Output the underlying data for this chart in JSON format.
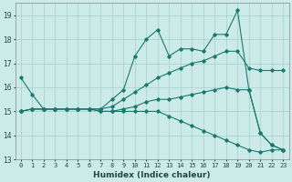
{
  "title": "",
  "xlabel": "Humidex (Indice chaleur)",
  "xlim": [
    -0.5,
    23.5
  ],
  "ylim": [
    13,
    19.5
  ],
  "yticks": [
    13,
    14,
    15,
    16,
    17,
    18,
    19
  ],
  "xticks": [
    0,
    1,
    2,
    3,
    4,
    5,
    6,
    7,
    8,
    9,
    10,
    11,
    12,
    13,
    14,
    15,
    16,
    17,
    18,
    19,
    20,
    21,
    22,
    23
  ],
  "bg_color": "#cceae8",
  "grid_color": "#aad4d0",
  "line_color": "#1a7a6e",
  "lines": [
    {
      "x": [
        0,
        1,
        2,
        3,
        4,
        5,
        6,
        7,
        8,
        9,
        10,
        11,
        12,
        13,
        14,
        15,
        16,
        17,
        18,
        19,
        20,
        21,
        22,
        23
      ],
      "y": [
        16.4,
        15.7,
        15.1,
        15.1,
        15.1,
        15.1,
        15.1,
        15.1,
        15.5,
        15.9,
        17.3,
        18.0,
        18.4,
        17.3,
        17.6,
        17.6,
        17.5,
        18.2,
        18.2,
        19.2,
        15.9,
        14.1,
        13.6,
        13.4
      ]
    },
    {
      "x": [
        0,
        1,
        2,
        3,
        4,
        5,
        6,
        7,
        8,
        9,
        10,
        11,
        12,
        13,
        14,
        15,
        16,
        17,
        18,
        19,
        20,
        21,
        22,
        23
      ],
      "y": [
        15.0,
        15.1,
        15.1,
        15.1,
        15.1,
        15.1,
        15.1,
        15.1,
        15.2,
        15.5,
        15.8,
        16.1,
        16.4,
        16.6,
        16.8,
        17.0,
        17.1,
        17.3,
        17.5,
        17.5,
        16.8,
        16.7,
        16.7,
        16.7
      ]
    },
    {
      "x": [
        0,
        1,
        2,
        3,
        4,
        5,
        6,
        7,
        8,
        9,
        10,
        11,
        12,
        13,
        14,
        15,
        16,
        17,
        18,
        19,
        20,
        21,
        22,
        23
      ],
      "y": [
        15.0,
        15.1,
        15.1,
        15.1,
        15.1,
        15.1,
        15.1,
        15.0,
        15.0,
        15.1,
        15.2,
        15.4,
        15.5,
        15.5,
        15.6,
        15.7,
        15.8,
        15.9,
        16.0,
        15.9,
        15.9,
        14.1,
        13.6,
        13.4
      ]
    },
    {
      "x": [
        0,
        1,
        2,
        3,
        4,
        5,
        6,
        7,
        8,
        9,
        10,
        11,
        12,
        13,
        14,
        15,
        16,
        17,
        18,
        19,
        20,
        21,
        22,
        23
      ],
      "y": [
        15.0,
        15.1,
        15.1,
        15.1,
        15.1,
        15.1,
        15.1,
        15.0,
        15.0,
        15.0,
        15.0,
        15.0,
        15.0,
        14.8,
        14.6,
        14.4,
        14.2,
        14.0,
        13.8,
        13.6,
        13.4,
        13.3,
        13.4,
        13.4
      ]
    }
  ]
}
